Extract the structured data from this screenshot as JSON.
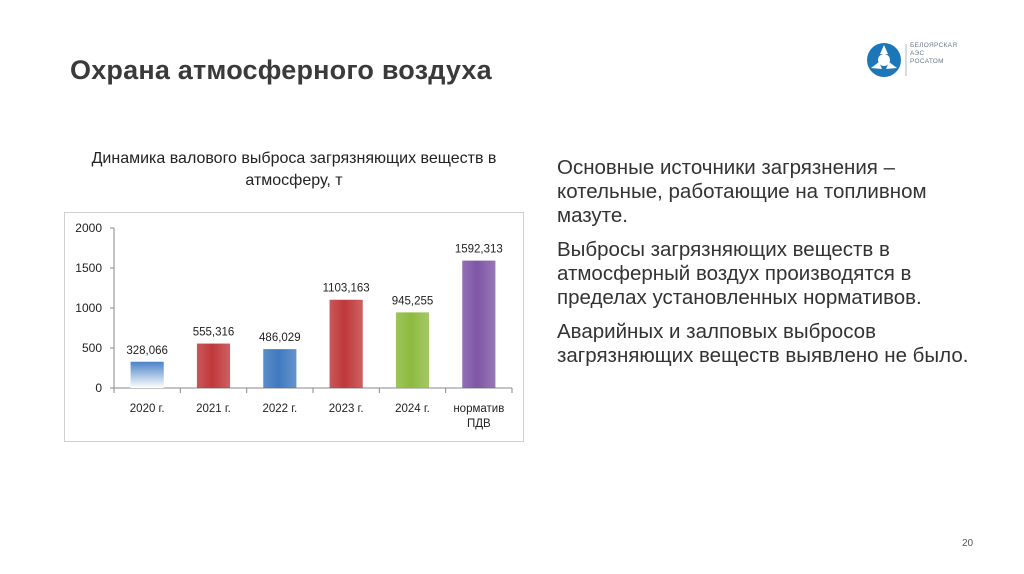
{
  "slide": {
    "title": "Охрана атмосферного воздуха",
    "page_number": "20"
  },
  "logo": {
    "line1": "БЕЛОЯРСКАЯ",
    "line2": "АЭС",
    "line3": "РОСАТОМ",
    "icon": "rosatom-logo-icon",
    "color": "#1d76b8"
  },
  "chart_data": {
    "type": "bar",
    "title": "Динамика валового выброса загрязняющих веществ в атмосферу, т",
    "categories": [
      "2020 г.",
      "2021 г.",
      "2022 г.",
      "2023 г.",
      "2024 г.",
      "норматив ПДВ"
    ],
    "category_lines": [
      [
        "2020 г."
      ],
      [
        "2021 г."
      ],
      [
        "2022 г."
      ],
      [
        "2023 г."
      ],
      [
        "2024 г."
      ],
      [
        "норматив",
        "ПДВ"
      ]
    ],
    "values": [
      328.066,
      555.316,
      486.029,
      1103.163,
      945.255,
      1592.313
    ],
    "value_labels": [
      "328,066",
      "555,316",
      "486,029",
      "1103,163",
      "945,255",
      "1592,313"
    ],
    "bar_colors": [
      "#4b82c8",
      "#c0393b",
      "#3f79bf",
      "#c0393b",
      "#8dbb3f",
      "#7f56a6"
    ],
    "bar_gradient": [
      true,
      false,
      false,
      false,
      false,
      false
    ],
    "ylim": [
      0,
      2000
    ],
    "yticks": [
      "0",
      "500",
      "1000",
      "1500",
      "2000"
    ],
    "ytick_values": [
      0,
      500,
      1000,
      1500,
      2000
    ],
    "grid": false,
    "legend": "none"
  },
  "bullets": [
    "Основные источники загрязнения – котельные, работающие на топливном мазуте.",
    "Выбросы загрязняющих веществ в атмосферный воздух производятся в пределах установленных нормативов.",
    "Аварийных и залповых выбросов загрязняющих веществ выявлено не было."
  ]
}
